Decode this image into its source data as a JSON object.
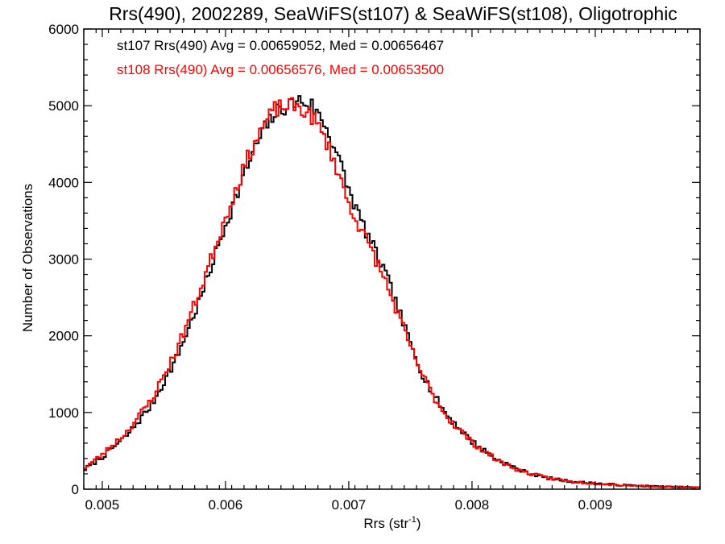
{
  "chart_data": {
    "type": "histogram",
    "title": "Rrs(490), 2002289, SeaWiFS(st107) & SeaWiFS(st108), Oligotrophic",
    "xlabel_main": "Rrs (str",
    "xlabel_sup": "-1",
    "xlabel_close": ")",
    "ylabel": "Number of Observations",
    "xlim": [
      0.00485,
      0.00985
    ],
    "ylim": [
      0,
      6000
    ],
    "x_ticks": [
      0.005,
      0.006,
      0.007,
      0.008,
      0.009
    ],
    "x_tick_labels": [
      "0.005",
      "0.006",
      "0.007",
      "0.008",
      "0.009"
    ],
    "y_ticks": [
      0,
      1000,
      2000,
      3000,
      4000,
      5000,
      6000
    ],
    "y_tick_labels": [
      "0",
      "1000",
      "2000",
      "3000",
      "4000",
      "5000",
      "6000"
    ],
    "annotations": [
      {
        "text": "st107 Rrs(490) Avg = 0.00659052, Med = 0.00656467",
        "color": "#000000"
      },
      {
        "text": "st108 Rrs(490) Avg = 0.00656576, Med = 0.00653500",
        "color": "#ff0000"
      }
    ],
    "series": [
      {
        "color": "#000000",
        "curve": {
          "x": [
            0.00485,
            0.005,
            0.0052,
            0.0054,
            0.0056,
            0.0058,
            0.006,
            0.0062,
            0.0063,
            0.0064,
            0.0065,
            0.0066,
            0.0067,
            0.0068,
            0.0069,
            0.007,
            0.0071,
            0.0072,
            0.0073,
            0.0074,
            0.0075,
            0.0076,
            0.0077,
            0.0078,
            0.008,
            0.0082,
            0.0084,
            0.0086,
            0.0088,
            0.009,
            0.0092,
            0.0095,
            0.00985
          ],
          "y": [
            250,
            420,
            700,
            1100,
            1700,
            2500,
            3450,
            4300,
            4650,
            4900,
            5000,
            5070,
            5000,
            4780,
            4400,
            3900,
            3500,
            3150,
            2800,
            2350,
            1900,
            1500,
            1200,
            960,
            620,
            390,
            240,
            150,
            100,
            75,
            55,
            35,
            20
          ]
        },
        "bin_width": 2e-05,
        "noise_amplitude": 110,
        "seed": 7
      },
      {
        "color": "#ff0000",
        "curve": {
          "x": [
            0.00485,
            0.005,
            0.0052,
            0.0054,
            0.0056,
            0.0058,
            0.006,
            0.0062,
            0.0063,
            0.0064,
            0.0065,
            0.0066,
            0.0067,
            0.0068,
            0.0069,
            0.007,
            0.0071,
            0.0072,
            0.0073,
            0.0074,
            0.0075,
            0.0076,
            0.0077,
            0.0078,
            0.008,
            0.0082,
            0.0084,
            0.0086,
            0.0088,
            0.009,
            0.0092,
            0.0095,
            0.00985
          ],
          "y": [
            270,
            450,
            750,
            1170,
            1800,
            2620,
            3550,
            4400,
            4720,
            4950,
            5000,
            4980,
            4860,
            4600,
            4200,
            3720,
            3380,
            3070,
            2700,
            2280,
            1850,
            1480,
            1180,
            940,
            610,
            380,
            235,
            150,
            100,
            75,
            55,
            35,
            20
          ]
        },
        "bin_width": 2e-05,
        "noise_amplitude": 110,
        "seed": 23
      }
    ]
  }
}
